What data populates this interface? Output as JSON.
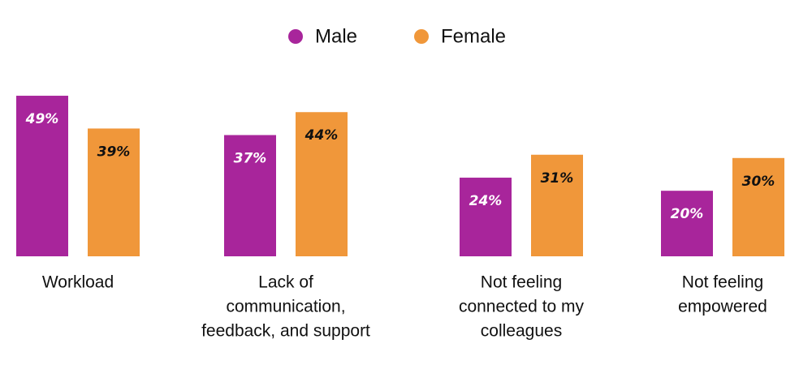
{
  "chart_data": {
    "type": "bar",
    "categories": [
      [
        "Workload"
      ],
      [
        "Lack of",
        "communication,",
        "feedback, and support"
      ],
      [
        "Not feeling",
        "connected to my",
        "colleagues"
      ],
      [
        "Not feeling",
        "empowered"
      ]
    ],
    "series": [
      {
        "name": "Male",
        "color": "#a8259b",
        "values": [
          49,
          37,
          24,
          20
        ],
        "value_labels": [
          "49%",
          "37%",
          "24%",
          "20%"
        ]
      },
      {
        "name": "Female",
        "color": "#f0973a",
        "values": [
          39,
          44,
          31,
          30
        ],
        "value_labels": [
          "39%",
          "44%",
          "31%",
          "30%"
        ]
      }
    ]
  }
}
